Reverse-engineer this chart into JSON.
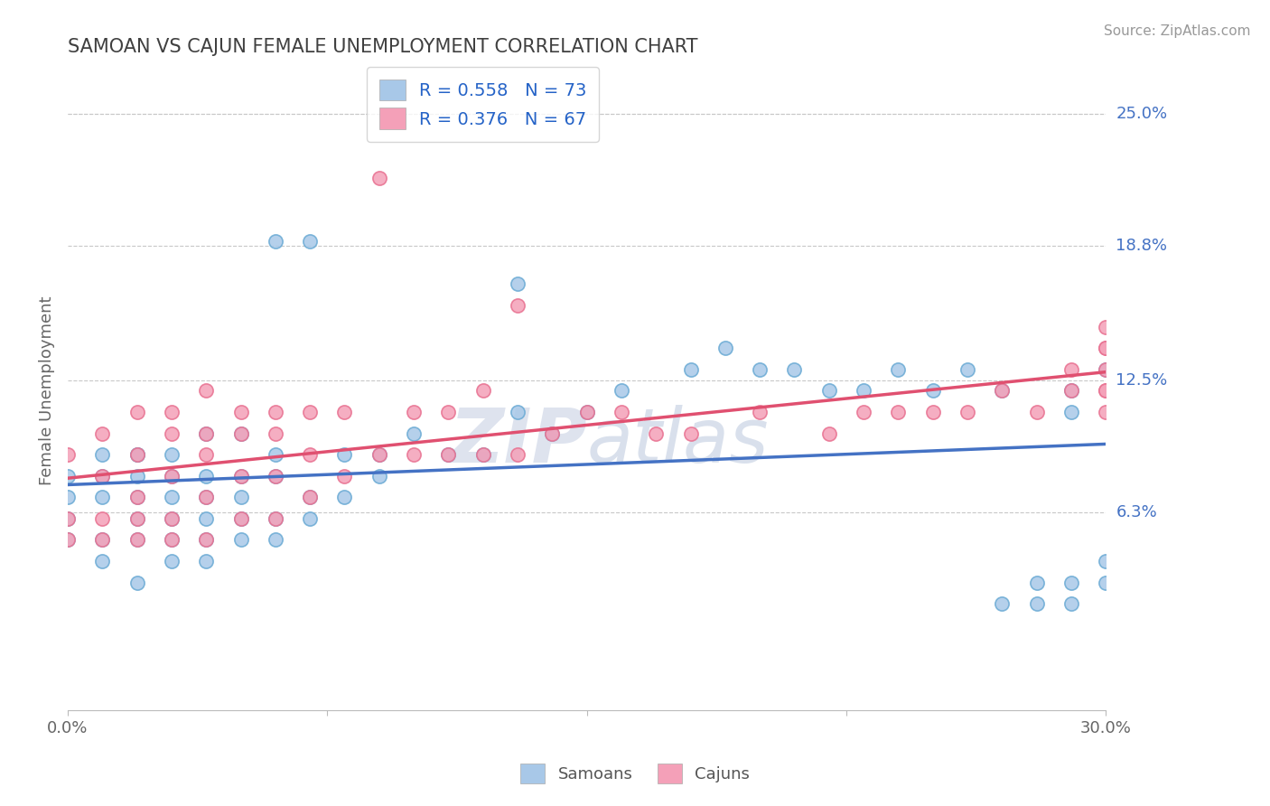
{
  "title": "SAMOAN VS CAJUN FEMALE UNEMPLOYMENT CORRELATION CHART",
  "source": "Source: ZipAtlas.com",
  "ylabel": "Female Unemployment",
  "yaxis_labels": [
    "25.0%",
    "18.8%",
    "12.5%",
    "6.3%"
  ],
  "yaxis_values": [
    0.25,
    0.188,
    0.125,
    0.063
  ],
  "xlim": [
    0.0,
    0.3
  ],
  "ylim": [
    -0.03,
    0.27
  ],
  "samoan_color": "#a8c8e8",
  "cajun_color": "#f4a0b8",
  "samoan_edge_color": "#6aaad4",
  "cajun_edge_color": "#e87090",
  "samoan_line_color": "#4472c4",
  "cajun_line_color": "#e05070",
  "samoan_R": 0.558,
  "samoan_N": 73,
  "cajun_R": 0.376,
  "cajun_N": 67,
  "legend_R_color": "#2563c7",
  "background_color": "#ffffff",
  "grid_color": "#c8c8c8",
  "title_color": "#404040",
  "samoan_x": [
    0.0,
    0.0,
    0.0,
    0.0,
    0.01,
    0.01,
    0.01,
    0.01,
    0.01,
    0.02,
    0.02,
    0.02,
    0.02,
    0.02,
    0.02,
    0.02,
    0.03,
    0.03,
    0.03,
    0.03,
    0.03,
    0.03,
    0.04,
    0.04,
    0.04,
    0.04,
    0.04,
    0.04,
    0.05,
    0.05,
    0.05,
    0.05,
    0.05,
    0.06,
    0.06,
    0.06,
    0.06,
    0.06,
    0.07,
    0.07,
    0.07,
    0.08,
    0.08,
    0.09,
    0.09,
    0.1,
    0.11,
    0.12,
    0.13,
    0.13,
    0.14,
    0.15,
    0.16,
    0.18,
    0.19,
    0.2,
    0.21,
    0.22,
    0.23,
    0.24,
    0.25,
    0.26,
    0.27,
    0.27,
    0.28,
    0.28,
    0.29,
    0.29,
    0.29,
    0.29,
    0.3,
    0.3,
    0.3
  ],
  "samoan_y": [
    0.05,
    0.06,
    0.07,
    0.08,
    0.04,
    0.05,
    0.07,
    0.08,
    0.09,
    0.03,
    0.05,
    0.06,
    0.07,
    0.08,
    0.09,
    0.09,
    0.04,
    0.05,
    0.06,
    0.07,
    0.08,
    0.09,
    0.04,
    0.05,
    0.06,
    0.07,
    0.08,
    0.1,
    0.05,
    0.06,
    0.07,
    0.08,
    0.1,
    0.05,
    0.06,
    0.08,
    0.09,
    0.19,
    0.06,
    0.07,
    0.19,
    0.07,
    0.09,
    0.08,
    0.09,
    0.1,
    0.09,
    0.09,
    0.11,
    0.17,
    0.1,
    0.11,
    0.12,
    0.13,
    0.14,
    0.13,
    0.13,
    0.12,
    0.12,
    0.13,
    0.12,
    0.13,
    0.02,
    0.12,
    0.02,
    0.03,
    0.02,
    0.03,
    0.11,
    0.12,
    0.03,
    0.04,
    0.13
  ],
  "cajun_x": [
    0.0,
    0.0,
    0.0,
    0.01,
    0.01,
    0.01,
    0.01,
    0.02,
    0.02,
    0.02,
    0.02,
    0.02,
    0.03,
    0.03,
    0.03,
    0.03,
    0.03,
    0.04,
    0.04,
    0.04,
    0.04,
    0.04,
    0.05,
    0.05,
    0.05,
    0.05,
    0.06,
    0.06,
    0.06,
    0.06,
    0.07,
    0.07,
    0.07,
    0.08,
    0.08,
    0.09,
    0.09,
    0.1,
    0.1,
    0.11,
    0.11,
    0.12,
    0.12,
    0.13,
    0.13,
    0.14,
    0.15,
    0.16,
    0.17,
    0.18,
    0.2,
    0.22,
    0.23,
    0.24,
    0.25,
    0.26,
    0.27,
    0.28,
    0.29,
    0.29,
    0.3,
    0.3,
    0.3,
    0.3,
    0.3,
    0.3,
    0.3
  ],
  "cajun_y": [
    0.05,
    0.06,
    0.09,
    0.05,
    0.06,
    0.08,
    0.1,
    0.05,
    0.06,
    0.07,
    0.09,
    0.11,
    0.05,
    0.06,
    0.08,
    0.1,
    0.11,
    0.05,
    0.07,
    0.09,
    0.1,
    0.12,
    0.06,
    0.08,
    0.1,
    0.11,
    0.06,
    0.08,
    0.1,
    0.11,
    0.07,
    0.09,
    0.11,
    0.08,
    0.11,
    0.09,
    0.22,
    0.09,
    0.11,
    0.09,
    0.11,
    0.09,
    0.12,
    0.09,
    0.16,
    0.1,
    0.11,
    0.11,
    0.1,
    0.1,
    0.11,
    0.1,
    0.11,
    0.11,
    0.11,
    0.11,
    0.12,
    0.11,
    0.12,
    0.13,
    0.11,
    0.12,
    0.12,
    0.13,
    0.14,
    0.14,
    0.15
  ]
}
